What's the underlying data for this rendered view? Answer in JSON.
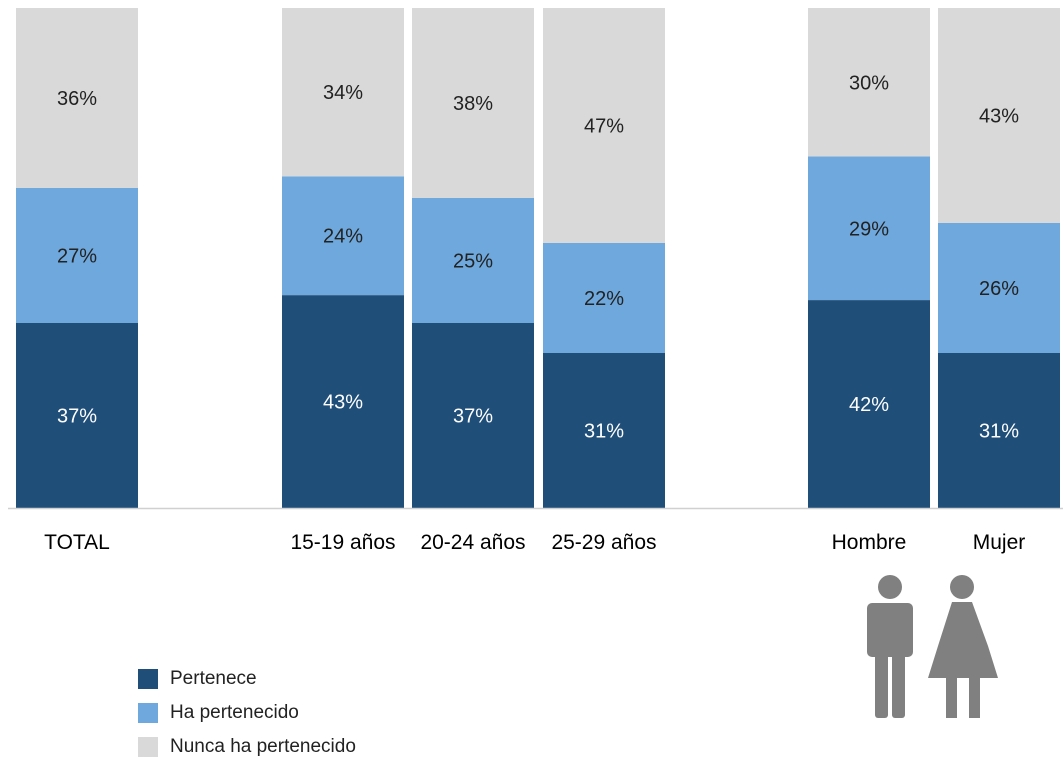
{
  "colors": {
    "pertenece": "#1f4e79",
    "ha_pertenecido": "#6fa8dc",
    "nunca": "#d9d9d9",
    "axis": "#d0d0d0",
    "icon": "#808080"
  },
  "chart_data": {
    "type": "bar",
    "stacked": true,
    "percent": true,
    "categories": [
      "TOTAL",
      "15-19 años",
      "20-24 años",
      "25-29 años",
      "Hombre",
      "Mujer"
    ],
    "series": [
      {
        "name": "Pertenece",
        "values": [
          37,
          43,
          37,
          31,
          42,
          31
        ],
        "labels": [
          "37%",
          "43%",
          "37%",
          "31%",
          "42%",
          "31%"
        ]
      },
      {
        "name": "Ha pertenecido",
        "values": [
          27,
          24,
          25,
          22,
          29,
          26
        ],
        "labels": [
          "27%",
          "24%",
          "25%",
          "22%",
          "29%",
          "26%"
        ]
      },
      {
        "name": "Nunca ha pertenecido",
        "values": [
          36,
          34,
          38,
          47,
          30,
          43
        ],
        "labels": [
          "36%",
          "34%",
          "38%",
          "47%",
          "30%",
          "43%"
        ]
      }
    ],
    "ylim": [
      0,
      100
    ],
    "legend_position": "bottom-left",
    "grid": false
  },
  "legend": [
    {
      "label": "Pertenece",
      "color_key": "pertenece"
    },
    {
      "label": "Ha pertenecido",
      "color_key": "ha_pertenecido"
    },
    {
      "label": "Nunca ha pertenecido",
      "color_key": "nunca"
    }
  ],
  "icons": [
    "man-icon",
    "woman-icon"
  ]
}
